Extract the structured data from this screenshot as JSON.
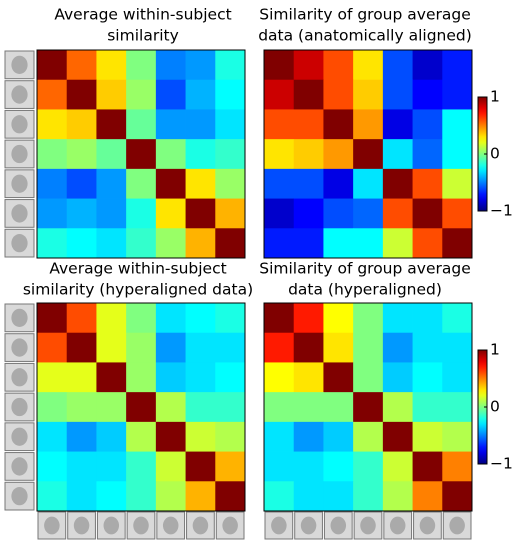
{
  "chart_data": [
    {
      "type": "heatmap",
      "title": [
        "Average within-subject",
        "similarity"
      ],
      "zlim": [
        -1,
        1
      ],
      "values": [
        [
          1,
          0.55,
          0.3,
          0,
          -0.5,
          -0.45,
          -0.2
        ],
        [
          0.55,
          1,
          0.35,
          0.05,
          -0.6,
          -0.4,
          -0.25
        ],
        [
          0.3,
          0.35,
          1,
          -0.05,
          -0.45,
          -0.45,
          -0.3
        ],
        [
          0,
          0.05,
          -0.05,
          1,
          0,
          -0.2,
          -0.15
        ],
        [
          -0.5,
          -0.6,
          -0.45,
          0,
          1,
          0.3,
          0.05
        ],
        [
          -0.45,
          -0.4,
          -0.45,
          -0.2,
          0.3,
          1,
          0.4
        ],
        [
          -0.2,
          -0.25,
          -0.3,
          -0.15,
          0.05,
          0.4,
          1
        ]
      ]
    },
    {
      "type": "heatmap",
      "title": [
        "Similarity of group average",
        "data (anatomically aligned)"
      ],
      "zlim": [
        -1,
        1
      ],
      "zticks": [
        {
          "value": -1,
          "label": "−1"
        },
        0,
        1
      ],
      "values": [
        [
          1,
          0.85,
          0.6,
          0.3,
          -0.6,
          -0.85,
          -0.7
        ],
        [
          0.85,
          1,
          0.6,
          0.35,
          -0.6,
          -0.75,
          -0.7
        ],
        [
          0.6,
          0.6,
          1,
          0.45,
          -0.8,
          -0.6,
          -0.25
        ],
        [
          0.3,
          0.35,
          0.45,
          1,
          -0.3,
          -0.55,
          -0.25
        ],
        [
          -0.6,
          -0.6,
          -0.8,
          -0.3,
          1,
          0.6,
          0.15
        ],
        [
          -0.85,
          -0.75,
          -0.6,
          -0.55,
          0.6,
          1,
          0.6
        ],
        [
          -0.7,
          -0.7,
          -0.25,
          -0.25,
          0.15,
          0.6,
          1
        ]
      ]
    },
    {
      "type": "heatmap",
      "title": [
        "Average within-subject",
        "similarity (hyperaligned data)"
      ],
      "zlim": [
        -1,
        1
      ],
      "values": [
        [
          1,
          0.6,
          0.2,
          0,
          -0.3,
          -0.25,
          -0.2
        ],
        [
          0.6,
          1,
          0.2,
          0.05,
          -0.45,
          -0.3,
          -0.3
        ],
        [
          0.2,
          0.2,
          1,
          0.05,
          -0.35,
          -0.3,
          -0.25
        ],
        [
          0,
          0.05,
          0.05,
          1,
          0.1,
          -0.15,
          -0.15
        ],
        [
          -0.3,
          -0.45,
          -0.35,
          0.1,
          1,
          0.15,
          0.1
        ],
        [
          -0.25,
          -0.3,
          -0.3,
          -0.15,
          0.15,
          1,
          0.4
        ],
        [
          -0.2,
          -0.3,
          -0.25,
          -0.15,
          0.1,
          0.4,
          1
        ]
      ]
    },
    {
      "type": "heatmap",
      "title": [
        "Similarity of group average",
        "data (hyperaligned)"
      ],
      "zlim": [
        -1,
        1
      ],
      "zticks": [
        {
          "value": -1,
          "label": "−1"
        },
        0,
        1
      ],
      "values": [
        [
          1,
          0.7,
          0.25,
          0,
          -0.3,
          -0.3,
          -0.2
        ],
        [
          0.7,
          1,
          0.3,
          0,
          -0.45,
          -0.3,
          -0.3
        ],
        [
          0.25,
          0.3,
          1,
          0,
          -0.35,
          -0.25,
          -0.3
        ],
        [
          0,
          0,
          0,
          1,
          0.1,
          -0.15,
          -0.15
        ],
        [
          -0.3,
          -0.45,
          -0.35,
          0.1,
          1,
          0.15,
          0.1
        ],
        [
          -0.3,
          -0.3,
          -0.25,
          -0.15,
          0.15,
          1,
          0.5
        ],
        [
          -0.2,
          -0.3,
          -0.3,
          -0.15,
          0.1,
          0.5,
          1
        ]
      ]
    }
  ]
}
